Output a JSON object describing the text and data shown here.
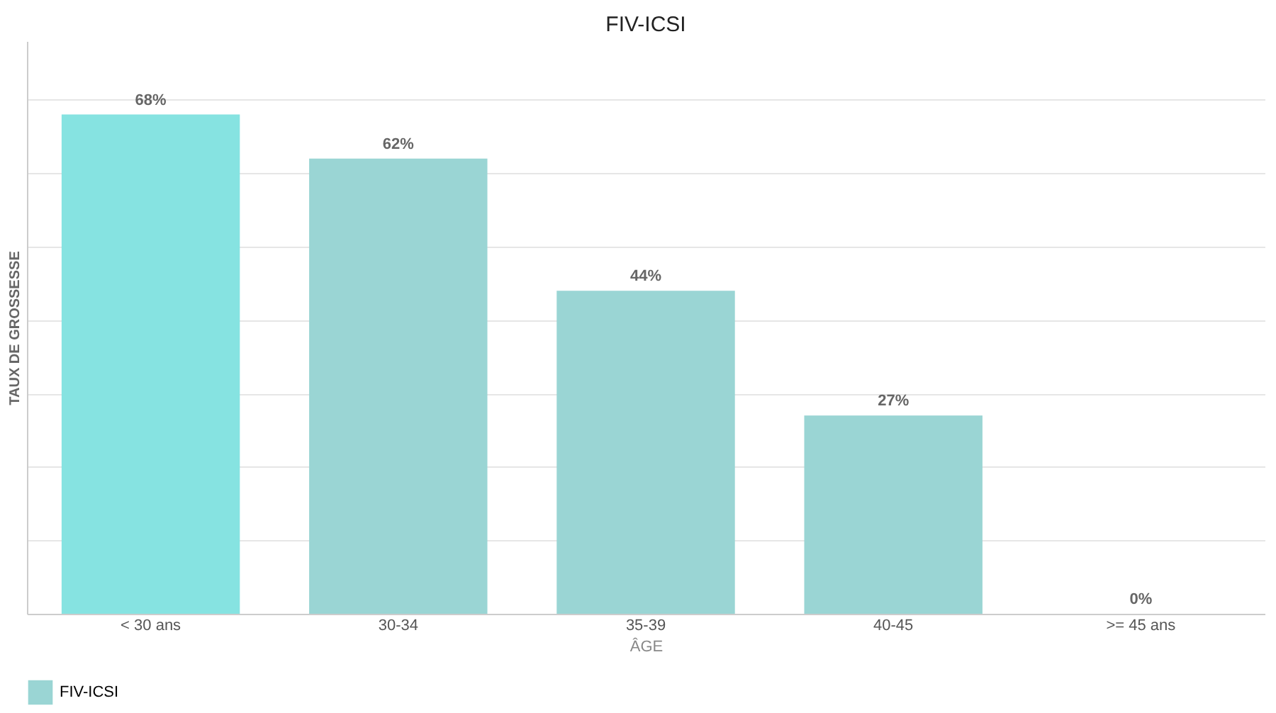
{
  "chart_data": {
    "type": "bar",
    "title": "FIV-ICSI",
    "xlabel": "ÂGE",
    "ylabel": "TAUX DE GROSSESSE",
    "categories": [
      "< 30 ans",
      "30-34",
      "35-39",
      "40-45",
      ">= 45 ans"
    ],
    "series": [
      {
        "name": "FIV-ICSI",
        "color": "#9ad5d4",
        "colors": [
          "#86e3e1",
          "#9ad5d4",
          "#9ad5d4",
          "#9ad5d4",
          "#9ad5d4"
        ],
        "values": [
          68,
          62,
          44,
          27,
          0
        ],
        "value_labels": [
          "68%",
          "62%",
          "44%",
          "27%",
          "0%"
        ]
      }
    ],
    "ylim": [
      0,
      78
    ],
    "yticks": [
      {
        "value": 0,
        "label": null
      },
      {
        "value": 10,
        "label": null
      },
      {
        "value": 20,
        "label": null
      },
      {
        "value": 30,
        "label": null
      },
      {
        "value": 40,
        "label": null
      },
      {
        "value": 50,
        "label": null
      },
      {
        "value": 60,
        "label": null
      },
      {
        "value": 70,
        "label": null
      }
    ],
    "tick_labels": "x",
    "grid": "y",
    "legend": "bottom"
  }
}
